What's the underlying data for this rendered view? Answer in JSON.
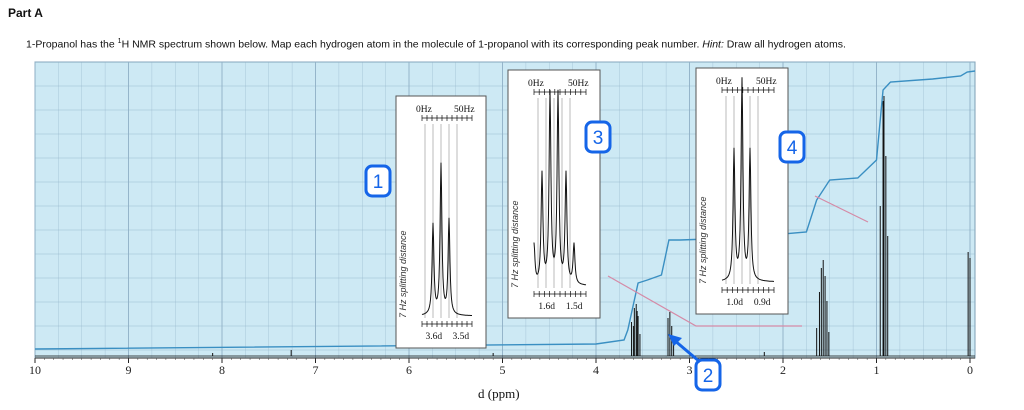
{
  "header": {
    "part_title": "Part A",
    "question_text_1": "1-Propanol has the ",
    "question_sup": "1",
    "question_text_2": "H NMR spectrum shown below. Map each hydrogen atom in the molecule of 1-propanol with its corresponding peak number. ",
    "hint_label": "Hint:",
    "hint_text": " Draw all hydrogen atoms."
  },
  "colors": {
    "grid_bg": "#cde9f4",
    "grid_line": "#8fb0c6",
    "integral": "#3a8fc2",
    "badge": "#1565e8",
    "connector": "#d58aa6"
  },
  "chart_data": {
    "type": "line",
    "xlabel": "d (ppm)",
    "xlim": [
      10,
      -0.3
    ],
    "x_ticks": [
      "10",
      "9",
      "8",
      "7",
      "6",
      "5",
      "4",
      "3",
      "2",
      "1",
      "0"
    ],
    "peaks": [
      {
        "label": "1",
        "ppm": 3.58,
        "multiplicity": "triplet"
      },
      {
        "label": "2",
        "ppm": 3.2,
        "multiplicity": "singlet"
      },
      {
        "label": "3",
        "ppm": 1.57,
        "multiplicity": "sextet"
      },
      {
        "label": "4",
        "ppm": 0.92,
        "multiplicity": "triplet"
      }
    ],
    "reference_peak_ppm": 0.0,
    "insets": [
      {
        "label": "1",
        "hz_left": "0Hz",
        "hz_right": "50Hz",
        "side_label": "7 Hz splitting distance",
        "bottom_left": "3.6d",
        "bottom_right": "3.5d"
      },
      {
        "label": "3",
        "hz_left": "0Hz",
        "hz_right": "50Hz",
        "side_label": "7 Hz splitting distance",
        "bottom_left": "1.6d",
        "bottom_right": "1.5d"
      },
      {
        "label": "4",
        "hz_left": "0Hz",
        "hz_right": "50Hz",
        "side_label": "7 Hz splitting distance",
        "bottom_left": "1.0d",
        "bottom_right": "0.9d"
      }
    ]
  }
}
